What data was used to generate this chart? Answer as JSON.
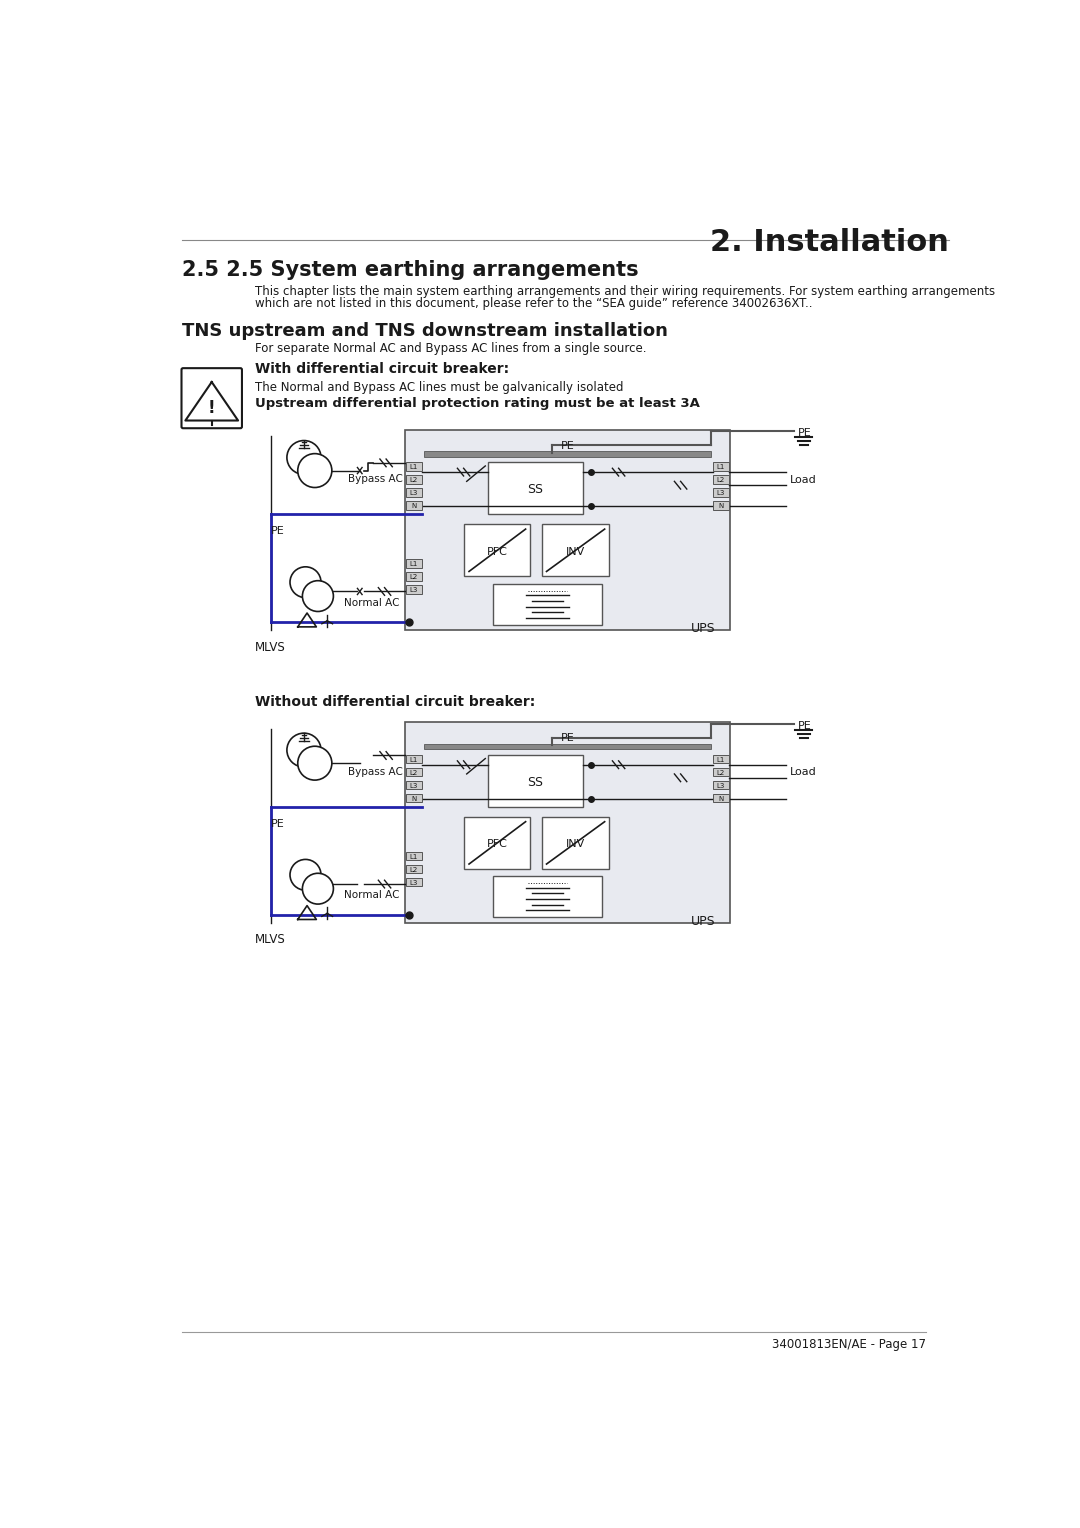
{
  "title_right": "2. Installation",
  "section_title": "2.5 2.5 System earthing arrangements",
  "section_body1": "This chapter lists the main system earthing arrangements and their wiring requirements. For system earthing arrangements",
  "section_body2": "which are not listed in this document, please refer to the “SEA guide” reference 34002636XT..",
  "subsection_title": "TNS upstream and TNS downstream installation",
  "subsection_body": "For separate Normal AC and Bypass AC lines from a single source.",
  "with_label": "With differential circuit breaker:",
  "warning_text1": "The Normal and Bypass AC lines must be galvanically isolated",
  "warning_text2": "Upstream differential protection rating must be at least 3A",
  "without_label": "Without differential circuit breaker:",
  "mlvs_label": "MLVS",
  "load_label": "Load",
  "ups_label": "UPS",
  "ss_label": "SS",
  "pfc_label": "PFC",
  "inv_label": "INV",
  "bypass_ac": "Bypass AC",
  "normal_ac": "Normal AC",
  "footer": "34001813EN/AE - Page 17",
  "bg_color": "#ffffff",
  "diagram_bg": "#e8eaf0",
  "line_color": "#1a1a1a",
  "gray_color": "#555555",
  "blue_line": "#2222aa",
  "panel_color": "#cccccc"
}
